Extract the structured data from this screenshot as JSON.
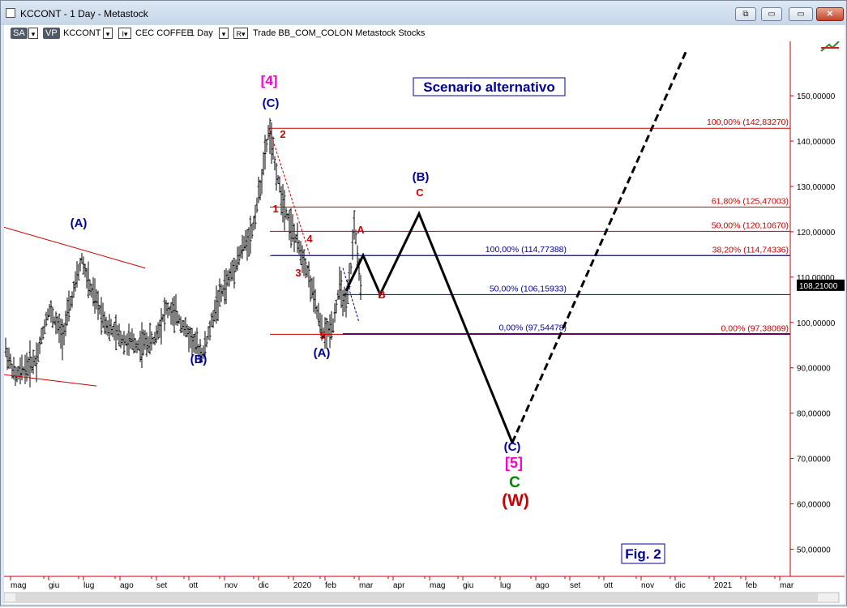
{
  "window": {
    "title": "KCCONT - 1 Day - Metastock",
    "buttons": [
      "⧉",
      "▭",
      "▭",
      "—",
      "✕"
    ]
  },
  "toolbar": {
    "mode": "SA",
    "vp": "VP",
    "symbol": "KCCONT",
    "dropdown_arrow": "▾",
    "cursor_glyph": "I▾",
    "security_name": "CEC COFFEE",
    "period": "1 Day",
    "r_glyph": "R▾",
    "info": "Trade  BB_COM_COLON  Metastock  Stocks"
  },
  "chart_data": {
    "type": "ohlc",
    "title": "Scenario alternativo",
    "figure_label": "Fig. 2",
    "x_tick_labels": [
      "mag",
      "giu",
      "lug",
      "ago",
      "set",
      "ott",
      "nov",
      "dic",
      "2020",
      "feb",
      "mar",
      "apr",
      "mag",
      "giu",
      "lug",
      "ago",
      "set",
      "ott",
      "nov",
      "dic",
      "2021",
      "feb",
      "mar"
    ],
    "y_ticks": [
      50,
      60,
      70,
      80,
      90,
      100,
      110,
      120,
      130,
      140,
      150
    ],
    "y_tick_labels": [
      "50,00000",
      "60,00000",
      "70,00000",
      "80,00000",
      "90,00000",
      "100,00000",
      "110,00000",
      "120,00000",
      "130,00000",
      "140,00000",
      "150,00000"
    ],
    "ylim": [
      44,
      162
    ],
    "last_price": 108.21,
    "last_price_label": "108,21000",
    "fib_levels": [
      {
        "label": "100,00% (142,83270)",
        "value": 142.8327,
        "color": "#cc0000"
      },
      {
        "label": "61,80% (125,47003)",
        "value": 125.47003,
        "color": "#cc0000"
      },
      {
        "label": "50,00% (120,10670)",
        "value": 120.1067,
        "color": "#cc0000"
      },
      {
        "label": "38,20% (114,74336)",
        "value": 114.74336,
        "color": "#cc0000"
      },
      {
        "label": "100,00% (114,77388)",
        "value": 114.77388,
        "color": "#000099"
      },
      {
        "label": "50,00% (106,15933)",
        "value": 106.15933,
        "color": "#000099"
      },
      {
        "label": "0,00% (97,54478)",
        "value": 97.54478,
        "color": "#000099"
      },
      {
        "label": "0,00% (97,38069)",
        "value": 97.38069,
        "color": "#cc0000"
      }
    ],
    "wave_labels": [
      {
        "text": "[4]",
        "color": "#ff00cc"
      },
      {
        "text": "(C)",
        "color": "#000099"
      },
      {
        "text": "2",
        "color": "#cc0000"
      },
      {
        "text": "1",
        "color": "#cc0000"
      },
      {
        "text": "4",
        "color": "#cc0000"
      },
      {
        "text": "3",
        "color": "#cc0000"
      },
      {
        "text": "5",
        "color": "#cc0000"
      },
      {
        "text": "(A)",
        "color": "#000099"
      },
      {
        "text": "A",
        "color": "#cc0000"
      },
      {
        "text": "B",
        "color": "#cc0000"
      },
      {
        "text": "(B)",
        "color": "#000099"
      },
      {
        "text": "C",
        "color": "#cc0000"
      },
      {
        "text": "(A)",
        "color": "#000099"
      },
      {
        "text": "(B)",
        "color": "#000099"
      },
      {
        "text": "(C)",
        "color": "#000099"
      },
      {
        "text": "[5]",
        "color": "#ff00cc"
      },
      {
        "text": "C",
        "color": "#008800"
      },
      {
        "text": "(W)",
        "color": "#cc0000"
      }
    ],
    "projection_solid": [
      [
        107.0,
        "2020-03"
      ],
      [
        114.8,
        "2020-03"
      ],
      [
        106.2,
        "2020-03"
      ],
      [
        124.0,
        "2020-04"
      ],
      [
        73.5,
        "2020-07"
      ]
    ],
    "projection_dashed": [
      [
        73.5,
        "2020-07"
      ],
      [
        160.0,
        "2020-12"
      ]
    ],
    "price_path_months": [
      "mag",
      "giu",
      "lug",
      "ago",
      "set",
      "ott",
      "nov",
      "dic",
      "gen",
      "feb",
      "mar"
    ],
    "price_path_values": [
      90,
      103,
      115,
      98,
      96,
      94,
      108,
      142.8,
      120,
      97.5,
      122
    ]
  }
}
